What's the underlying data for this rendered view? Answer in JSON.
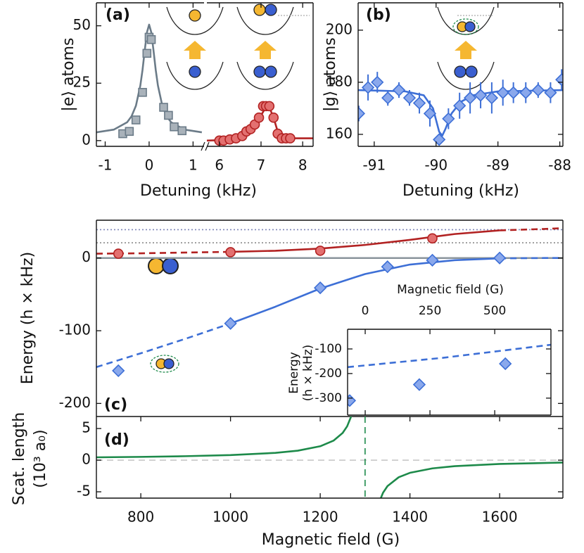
{
  "chart_data": [
    {
      "type": "scatter",
      "panel_label": "(a)",
      "ylabel": "|e⟩ atoms",
      "xlabel": "Detuning (kHz)",
      "xlim": [
        -1.2,
        1.25
      ],
      "ylim": [
        -2.5,
        60
      ],
      "xticks": [
        -1,
        0,
        1
      ],
      "yticks": [
        0,
        25,
        50
      ],
      "points": [
        {
          "marker": "square",
          "color": "#6b7b88",
          "fill": "#a9b2ba",
          "x": [
            -0.6,
            -0.45,
            -0.3,
            -0.15,
            -0.05,
            0,
            0.05,
            0.33,
            0.44,
            0.57,
            0.75
          ],
          "values": [
            3,
            4,
            9,
            21,
            38,
            45,
            44,
            14.5,
            11,
            6,
            4.3
          ]
        }
      ],
      "fits": [
        {
          "color": "#6b7b88",
          "style": "solid",
          "x": [
            -1.2,
            -0.8,
            -0.5,
            -0.4,
            -0.3,
            -0.2,
            -0.15,
            -0.1,
            -0.05,
            0,
            0.05,
            0.1,
            0.15,
            0.2,
            0.3,
            0.4,
            0.5,
            0.8,
            1.2
          ],
          "values": [
            3.6,
            4.8,
            8,
            10.6,
            15.2,
            24,
            30.8,
            39.2,
            47.1,
            50.5,
            47.1,
            39.2,
            30.8,
            24,
            15.2,
            10.6,
            8,
            4.8,
            3.6
          ]
        }
      ]
    },
    {
      "type": "scatter",
      "xlim": [
        5.7,
        8.25
      ],
      "ylim": [
        -2.5,
        60
      ],
      "xticks": [
        6,
        7,
        8
      ],
      "points": [
        {
          "marker": "circle",
          "color": "#b22222",
          "fill": "#e37070",
          "x": [
            6.0,
            6.1,
            6.25,
            6.4,
            6.55,
            6.65,
            6.75,
            6.85,
            6.95,
            7.05,
            7.12,
            7.2,
            7.3,
            7.4,
            7.5,
            7.6,
            7.7
          ],
          "values": [
            0,
            0,
            0.5,
            1,
            2,
            4,
            5,
            7,
            10,
            15,
            15,
            15,
            10,
            3,
            1,
            1,
            1
          ]
        }
      ],
      "fits": [
        {
          "color": "#b22222",
          "style": "solid",
          "x": [
            5.7,
            6.2,
            6.5,
            6.7,
            6.9,
            7.0,
            7.1,
            7.2,
            7.3,
            7.4,
            7.5,
            7.7,
            8.0,
            8.25
          ],
          "values": [
            0,
            0.3,
            1.5,
            4,
            8,
            11,
            14,
            14.5,
            10,
            4,
            1.5,
            1,
            1,
            1
          ]
        }
      ]
    },
    {
      "type": "scatter",
      "panel_label": "(b)",
      "ylabel": "|g⟩ atoms",
      "xlabel": "Detuning (kHz)",
      "xlim": [
        -91.26,
        -87.95
      ],
      "ylim": [
        155.4,
        210.5
      ],
      "xticks": [
        -91,
        -90,
        -89,
        -88
      ],
      "yticks": [
        160,
        180,
        200
      ],
      "points": [
        {
          "marker": "diamond",
          "color": "#3d6fd6",
          "fill": "#8aa8ec",
          "x": [
            -91.25,
            -91.1,
            -90.95,
            -90.78,
            -90.6,
            -90.43,
            -90.27,
            -90.1,
            -89.95,
            -89.8,
            -89.62,
            -89.45,
            -89.28,
            -89.1,
            -88.92,
            -88.75,
            -88.55,
            -88.35,
            -88.15,
            -87.97
          ],
          "values": [
            168,
            178,
            180,
            174,
            177,
            174,
            172,
            168,
            158,
            166,
            171,
            174,
            175,
            174,
            176,
            176,
            176,
            177,
            176,
            181
          ],
          "errors": [
            3,
            5,
            4,
            3,
            3,
            3,
            4,
            5,
            2,
            4,
            5,
            6,
            5,
            6,
            5,
            4,
            4,
            3,
            4,
            4
          ]
        }
      ],
      "fits": [
        {
          "color": "#3d6fd6",
          "style": "solid",
          "x": [
            -91.26,
            -90.5,
            -90.2,
            -90.05,
            -89.95,
            -89.9,
            -89.85,
            -89.75,
            -89.6,
            -89.4,
            -89.0,
            -87.95
          ],
          "values": [
            177,
            176.5,
            175,
            170,
            161,
            159.5,
            162,
            168,
            172.5,
            175,
            176.5,
            177
          ]
        }
      ]
    },
    {
      "type": "scatter",
      "panel_label": "(c)",
      "ylabel": "Energy (h × kHz)",
      "xlim": [
        701,
        1741
      ],
      "ylim": [
        -218,
        52
      ],
      "yticks": [
        -200,
        -100,
        0
      ],
      "hlines": [
        {
          "value": 0,
          "color": "#8a949c",
          "style": "solid"
        },
        {
          "value": 39,
          "color": "#7f86b8",
          "style": "dotted"
        },
        {
          "value": 21,
          "color": "#8a8a8a",
          "style": "dotted"
        }
      ],
      "fits": [
        {
          "color": "#b22222",
          "style": "dashed",
          "x": [
            701,
            800,
            900,
            1000
          ],
          "values": [
            6,
            6.5,
            7.5,
            8.5
          ]
        },
        {
          "color": "#b22222",
          "style": "solid",
          "x": [
            1000,
            1100,
            1200,
            1300,
            1400,
            1500,
            1600
          ],
          "values": [
            8.5,
            10,
            13,
            18,
            25,
            33,
            38
          ]
        },
        {
          "color": "#b22222",
          "style": "dashed",
          "x": [
            1600,
            1700,
            1741
          ],
          "values": [
            38,
            40,
            41
          ]
        },
        {
          "color": "#3d6fd6",
          "style": "dashed",
          "x": [
            701,
            800,
            900,
            1000
          ],
          "values": [
            -150,
            -131,
            -111,
            -90
          ]
        },
        {
          "color": "#3d6fd6",
          "style": "solid",
          "x": [
            1000,
            1100,
            1200,
            1300,
            1400,
            1500,
            1600
          ],
          "values": [
            -90,
            -67,
            -42,
            -22,
            -9,
            -3,
            -0.5
          ]
        },
        {
          "color": "#3d6fd6",
          "style": "dashed",
          "x": [
            1600,
            1700,
            1741
          ],
          "values": [
            -0.5,
            0,
            0
          ]
        }
      ],
      "points": [
        {
          "marker": "circle",
          "color": "#b22222",
          "fill": "#e37070",
          "x": [
            750,
            1000,
            1200,
            1450
          ],
          "values": [
            6,
            8,
            10,
            27
          ]
        },
        {
          "marker": "diamond",
          "color": "#3d6fd6",
          "fill": "#8aa8ec",
          "x": [
            750,
            1000,
            1200,
            1350,
            1450,
            1600
          ],
          "values": [
            -155,
            -90,
            -41,
            -12,
            -3,
            0
          ]
        }
      ]
    },
    {
      "type": "scatter",
      "xlabel": "Magnetic field (G)",
      "ylabel": [
        "Energy",
        "(h × kHz)"
      ],
      "xlim": [
        -68,
        717
      ],
      "ylim": [
        -369,
        -20
      ],
      "xticks": [
        0,
        250,
        500
      ],
      "yticks": [
        -300,
        -200,
        -100
      ],
      "fits": [
        {
          "color": "#3d6fd6",
          "style": "dashed",
          "x": [
            -68,
            300,
            717
          ],
          "values": [
            -174,
            -136,
            -83
          ]
        }
      ],
      "points": [
        {
          "marker": "diamond",
          "color": "#3d6fd6",
          "fill": "#8aa8ec",
          "x": [
            -60,
            209,
            541
          ],
          "values": [
            -310,
            -245,
            -160
          ]
        }
      ]
    },
    {
      "type": "line",
      "panel_label": "(d)",
      "ylabel": [
        "Scat. length",
        "(10³ a₀)"
      ],
      "xlabel": "Magnetic field (G)",
      "xlim": [
        701,
        1741
      ],
      "ylim": [
        -6,
        6.9
      ],
      "xticks": [
        800,
        1000,
        1200,
        1400,
        1600
      ],
      "yticks": [
        -5,
        0,
        5
      ],
      "hlines": [
        {
          "value": 0,
          "color": "#c8c8c8",
          "style": "dashed"
        }
      ],
      "vlines": [
        {
          "value": 1300,
          "color": "#1d8a4a",
          "style": "dashed"
        }
      ],
      "fits": [
        {
          "color": "#1d8a4a",
          "style": "solid",
          "x": [
            700,
            800,
            900,
            1000,
            1100,
            1150,
            1200,
            1230,
            1250,
            1260,
            1270,
            1300,
            1330,
            1340,
            1350,
            1375,
            1400,
            1450,
            1500,
            1600,
            1741
          ],
          "values": [
            0.45,
            0.52,
            0.63,
            0.8,
            1.15,
            1.5,
            2.2,
            3.1,
            4.3,
            5.35,
            7.1,
            null,
            -6.9,
            -5.15,
            -4.1,
            -2.7,
            -2.0,
            -1.3,
            -0.95,
            -0.6,
            -0.38
          ]
        }
      ]
    }
  ]
}
